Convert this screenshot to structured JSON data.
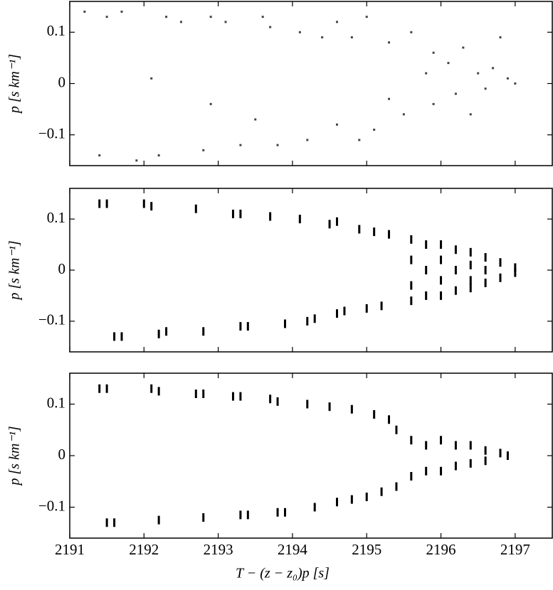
{
  "chart_data": [
    {
      "type": "scatter",
      "y_label": "p [s km⁻¹]",
      "color": "#444444",
      "marker": "dot",
      "xlim": [
        2191,
        2197.5
      ],
      "ylim": [
        -0.16,
        0.16
      ],
      "xticks": [
        2191,
        2192,
        2193,
        2194,
        2195,
        2196,
        2197
      ],
      "yticks": [
        {
          "value": 0.1,
          "label": "0.1"
        },
        0,
        {
          "value": -0.1,
          "label": "−0.1"
        }
      ],
      "x": [
        2191.2,
        2191.5,
        2191.7,
        2192.3,
        2192.5,
        2192.9,
        2193.1,
        2193.6,
        2193.7,
        2194.1,
        2194.4,
        2194.6,
        2194.8,
        2195.0,
        2195.3,
        2195.6,
        2195.9,
        2196.1,
        2196.3,
        2196.5,
        2196.7,
        2196.9,
        2197.0,
        2196.6,
        2196.2,
        2195.9,
        2195.5,
        2195.3,
        2195.1,
        2194.9,
        2194.6,
        2194.2,
        2193.8,
        2193.3,
        2192.8,
        2192.2,
        2191.9,
        2191.4,
        2192.1,
        2192.9,
        2193.5,
        2195.8,
        2196.4,
        2196.8
      ],
      "values": [
        0.14,
        0.13,
        0.14,
        0.13,
        0.12,
        0.13,
        0.12,
        0.13,
        0.11,
        0.1,
        0.09,
        0.12,
        0.09,
        0.13,
        0.08,
        0.1,
        0.06,
        0.04,
        0.07,
        0.02,
        0.03,
        0.01,
        0.0,
        -0.01,
        -0.02,
        -0.04,
        -0.06,
        -0.03,
        -0.09,
        -0.11,
        -0.08,
        -0.11,
        -0.12,
        -0.12,
        -0.13,
        -0.14,
        -0.15,
        -0.14,
        0.01,
        -0.04,
        -0.07,
        0.02,
        -0.06,
        0.09
      ]
    },
    {
      "type": "scatter",
      "y_label": "p [s km⁻¹]",
      "color": "#000000",
      "marker": "dash",
      "xlim": [
        2191,
        2197.5
      ],
      "ylim": [
        -0.16,
        0.16
      ],
      "xticks": [
        2191,
        2192,
        2193,
        2194,
        2195,
        2196,
        2197
      ],
      "yticks": [
        {
          "value": 0.1,
          "label": "0.1"
        },
        0,
        {
          "value": -0.1,
          "label": "−0.1"
        }
      ],
      "x": [
        2191.4,
        2191.5,
        2192.0,
        2192.1,
        2192.7,
        2193.2,
        2193.3,
        2193.7,
        2194.1,
        2194.5,
        2194.6,
        2194.9,
        2195.1,
        2195.3,
        2191.6,
        2191.7,
        2192.2,
        2192.3,
        2192.8,
        2193.3,
        2193.4,
        2193.9,
        2194.2,
        2194.3,
        2194.6,
        2194.7,
        2195.0,
        2195.2,
        2195.6,
        2195.6,
        2195.6,
        2195.6,
        2195.8,
        2195.8,
        2195.8,
        2196.0,
        2196.0,
        2196.0,
        2196.0,
        2196.2,
        2196.2,
        2196.2,
        2196.4,
        2196.4,
        2196.4,
        2196.4,
        2196.6,
        2196.6,
        2196.6,
        2196.8,
        2196.8,
        2197.0,
        2197.0
      ],
      "values": [
        0.13,
        0.13,
        0.13,
        0.125,
        0.12,
        0.11,
        0.11,
        0.105,
        0.1,
        0.09,
        0.095,
        0.08,
        0.075,
        0.07,
        -0.13,
        -0.13,
        -0.125,
        -0.12,
        -0.12,
        -0.11,
        -0.11,
        -0.105,
        -0.1,
        -0.095,
        -0.085,
        -0.08,
        -0.075,
        -0.07,
        0.06,
        0.02,
        -0.03,
        -0.06,
        0.05,
        0.0,
        -0.05,
        0.05,
        0.02,
        -0.02,
        -0.05,
        0.04,
        0.0,
        -0.04,
        0.035,
        0.01,
        -0.02,
        -0.035,
        0.025,
        -0.025,
        0.0,
        0.015,
        -0.015,
        0.005,
        -0.005
      ]
    },
    {
      "type": "scatter",
      "y_label": "p [s km⁻¹]",
      "x_label": "T − (z − z₀)p [s]",
      "color": "#000000",
      "marker": "dash",
      "xlim": [
        2191,
        2197.5
      ],
      "ylim": [
        -0.16,
        0.16
      ],
      "xticks": [
        2191,
        2192,
        2193,
        2194,
        2195,
        2196,
        2197
      ],
      "yticks": [
        {
          "value": 0.1,
          "label": "0.1"
        },
        0,
        {
          "value": -0.1,
          "label": "−0.1"
        }
      ],
      "x": [
        2191.4,
        2191.5,
        2192.1,
        2192.2,
        2192.7,
        2192.8,
        2193.2,
        2193.3,
        2193.7,
        2193.8,
        2194.2,
        2194.5,
        2194.8,
        2195.1,
        2195.3,
        2195.4,
        2191.5,
        2191.6,
        2192.2,
        2192.8,
        2193.3,
        2193.4,
        2193.8,
        2193.9,
        2194.3,
        2194.6,
        2194.8,
        2195.0,
        2195.2,
        2195.4,
        2195.6,
        2195.6,
        2195.8,
        2195.8,
        2196.0,
        2196.0,
        2196.2,
        2196.2,
        2196.4,
        2196.4,
        2196.6,
        2196.6,
        2196.8,
        2196.9
      ],
      "values": [
        0.13,
        0.13,
        0.13,
        0.125,
        0.12,
        0.12,
        0.115,
        0.115,
        0.11,
        0.105,
        0.1,
        0.095,
        0.09,
        0.08,
        0.07,
        0.05,
        -0.13,
        -0.13,
        -0.125,
        -0.12,
        -0.115,
        -0.115,
        -0.11,
        -0.11,
        -0.1,
        -0.09,
        -0.085,
        -0.08,
        -0.07,
        -0.06,
        0.03,
        -0.04,
        0.02,
        -0.03,
        0.03,
        -0.03,
        0.02,
        -0.02,
        0.02,
        -0.015,
        0.01,
        -0.01,
        0.005,
        0.0
      ]
    }
  ]
}
